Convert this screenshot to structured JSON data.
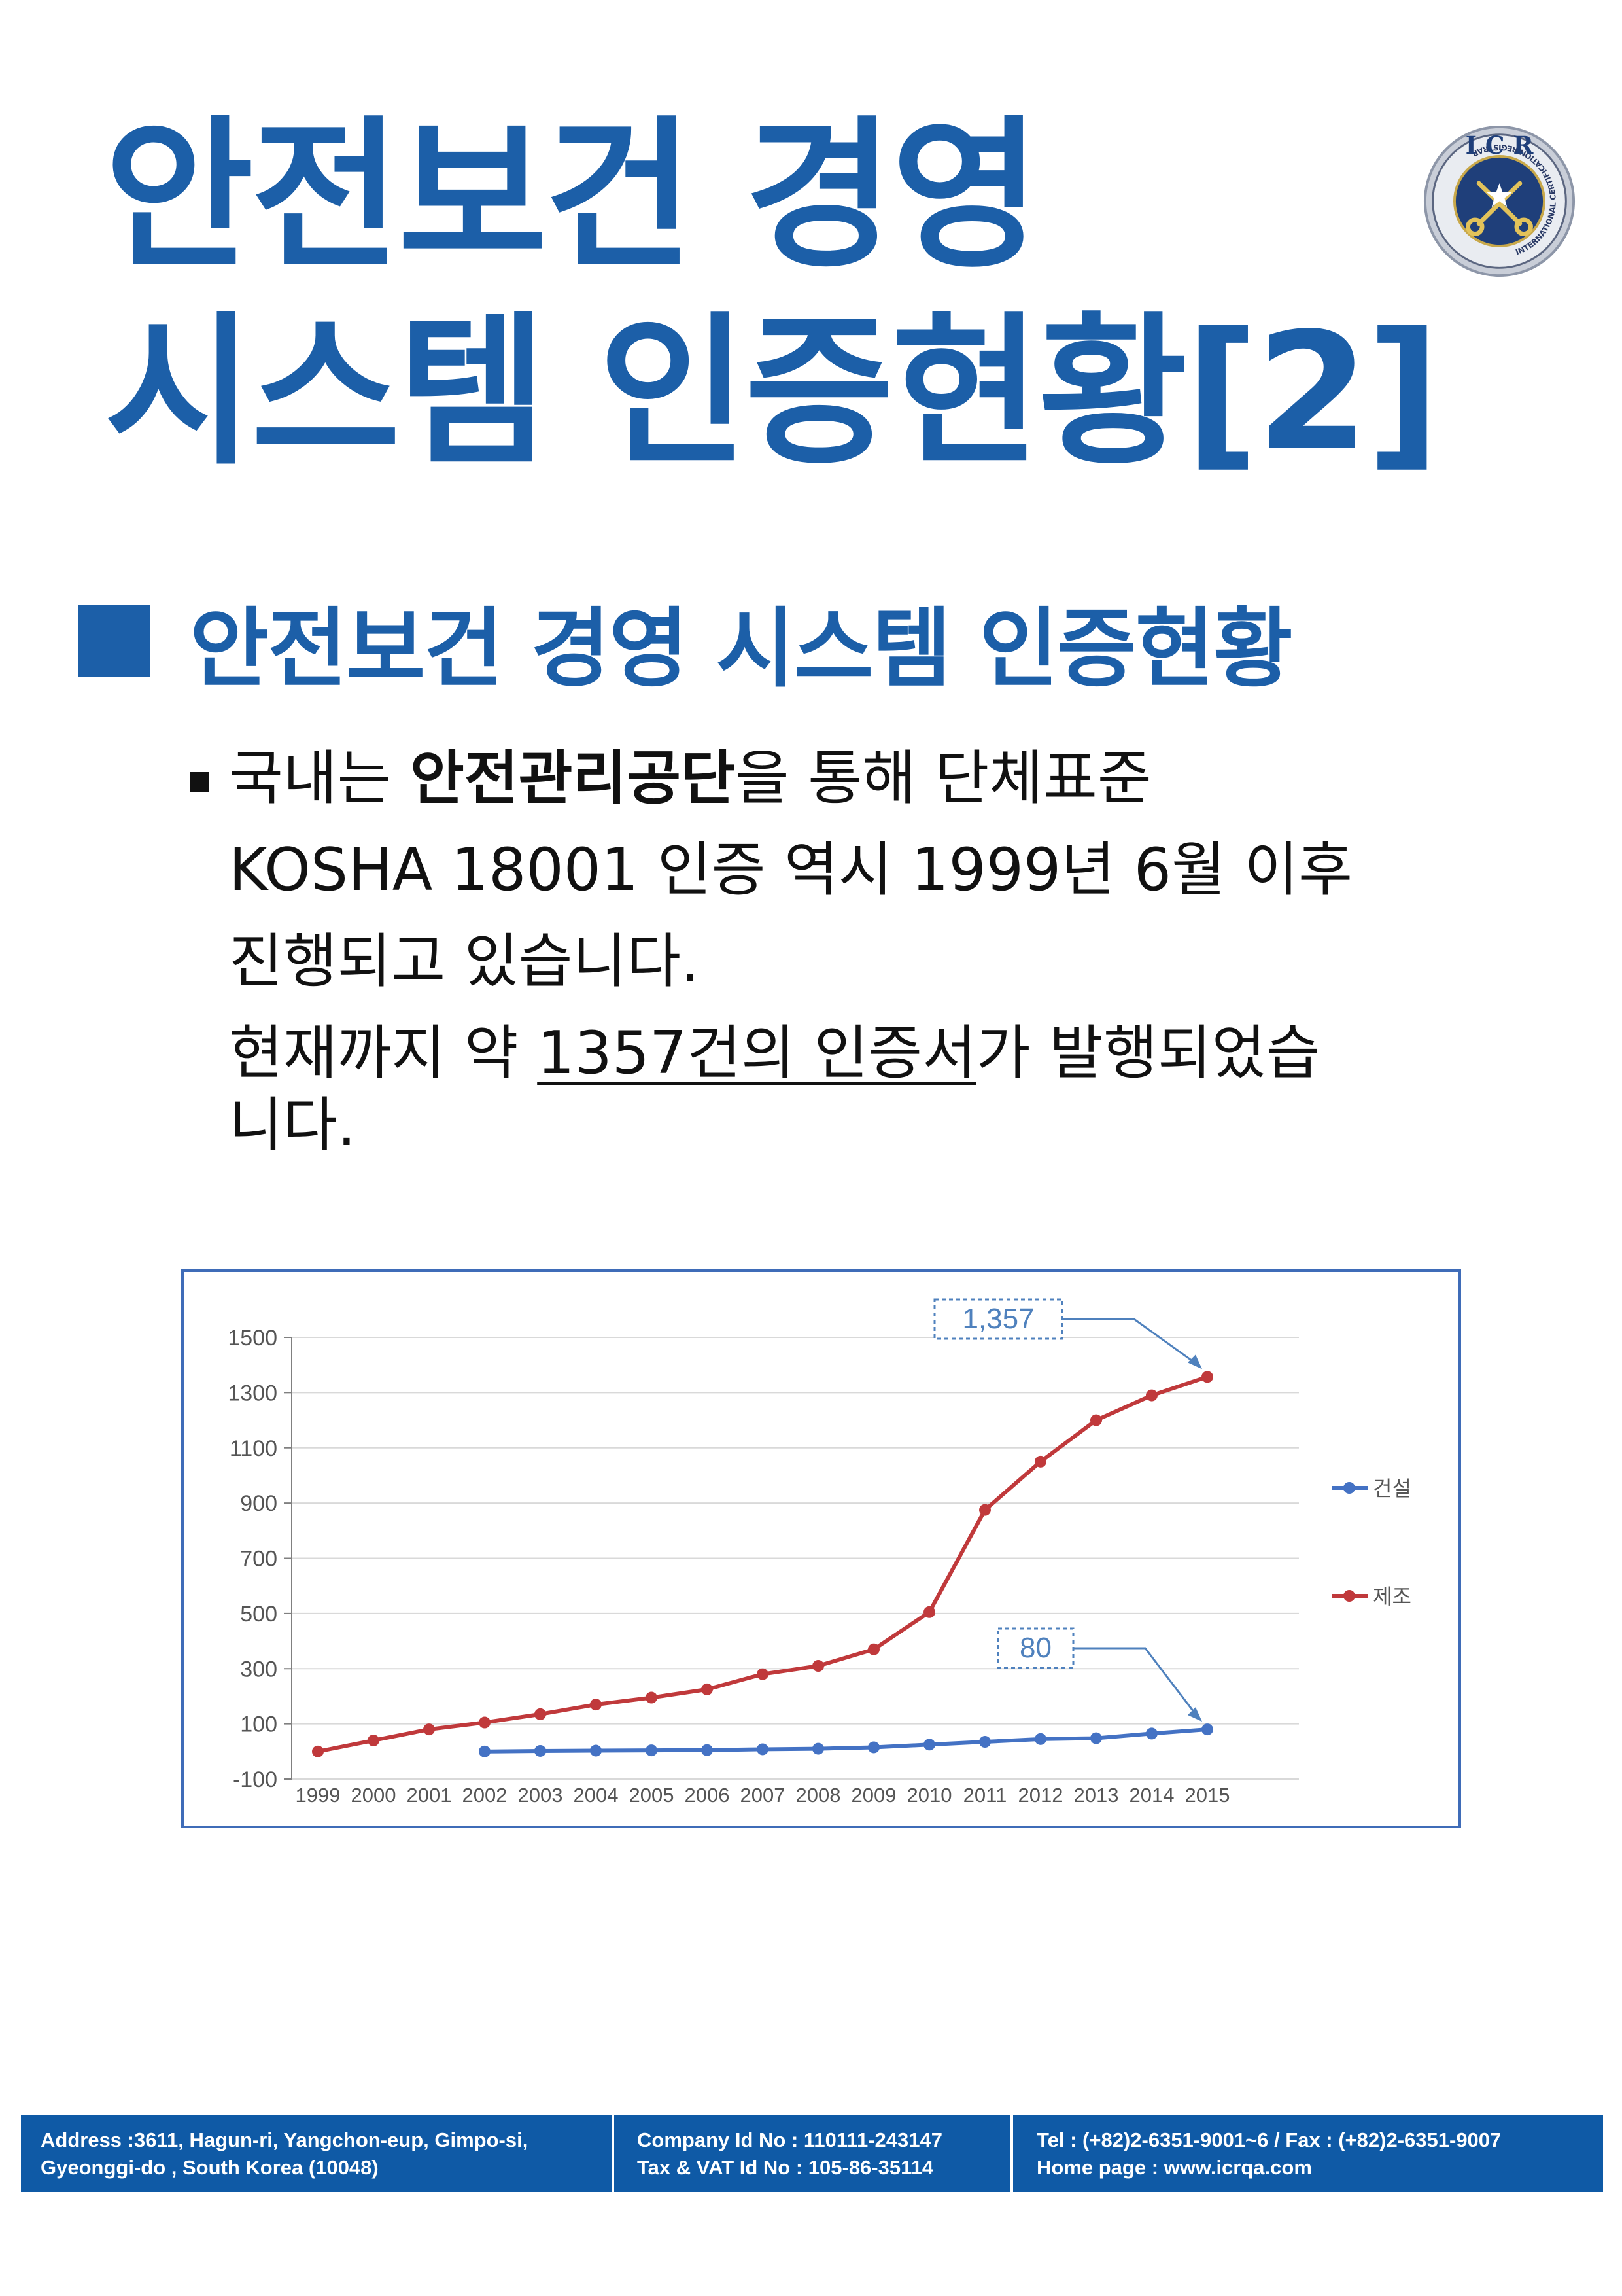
{
  "title": {
    "line1": "안전보건 경영",
    "line2": "시스템 인증현황[2]"
  },
  "logo": {
    "letters": "I C R",
    "ring_text": "INTERNATIONAL CERTIFICATION REGISTRAR"
  },
  "section": {
    "heading": "안전보건 경영 시스템 인증현황"
  },
  "body": {
    "l1a": "국내는 ",
    "l1b": "안전관리공단",
    "l1c": "을 통해 단체표준",
    "l2": "KOSHA 18001 인증 역시 1999년 6월 이후",
    "l3": "진행되고 있습니다.",
    "l4a": "현재까지 약 ",
    "l4b": "1357건의 인증서",
    "l4c": "가 발행되었습",
    "l5": "니다."
  },
  "chart_data": {
    "type": "line",
    "x": [
      "1999",
      "2000",
      "2001",
      "2002",
      "2003",
      "2004",
      "2005",
      "2006",
      "2007",
      "2008",
      "2009",
      "2010",
      "2011",
      "2012",
      "2013",
      "2014",
      "2015"
    ],
    "yticks": [
      "1500",
      "1300",
      "1100",
      "900",
      "700",
      "500",
      "300",
      "100",
      "-100"
    ],
    "ylim": [
      -100,
      1500
    ],
    "grid": true,
    "legend": "right",
    "series": [
      {
        "name": "건설",
        "color": "#4472c4",
        "values": [
          null,
          null,
          null,
          0,
          2,
          3,
          4,
          5,
          8,
          10,
          15,
          25,
          35,
          45,
          48,
          65,
          80
        ]
      },
      {
        "name": "제조",
        "color": "#c0393b",
        "values": [
          0,
          40,
          80,
          105,
          135,
          170,
          195,
          225,
          280,
          310,
          370,
          505,
          875,
          1050,
          1200,
          1290,
          1357
        ]
      }
    ],
    "annotations": [
      {
        "text": "1,357",
        "series": "제조",
        "x": "2015"
      },
      {
        "text": "80",
        "series": "건설",
        "x": "2015"
      }
    ]
  },
  "footer": {
    "addr1": "Address :3611, Hagun-ri, Yangchon-eup, Gimpo-si,",
    "addr2": "Gyeonggi-do , South Korea (10048)",
    "company1": "Company Id No : 110111-243147",
    "company2": "Tax & VAT Id No : 105-86-35114",
    "tel": "Tel : (+82)2-6351-9001~6 / Fax : (+82)2-6351-9007",
    "home": "Home page : www.icrqa.com"
  }
}
